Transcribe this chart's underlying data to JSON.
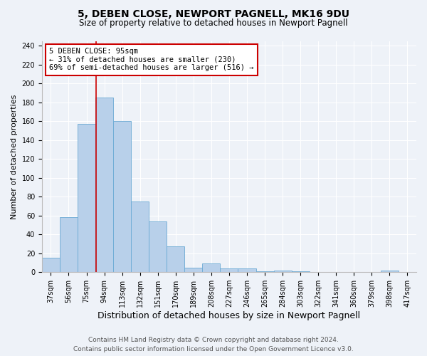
{
  "title": "5, DEBEN CLOSE, NEWPORT PAGNELL, MK16 9DU",
  "subtitle": "Size of property relative to detached houses in Newport Pagnell",
  "xlabel": "Distribution of detached houses by size in Newport Pagnell",
  "ylabel": "Number of detached properties",
  "bin_labels": [
    "37sqm",
    "56sqm",
    "75sqm",
    "94sqm",
    "113sqm",
    "132sqm",
    "151sqm",
    "170sqm",
    "189sqm",
    "208sqm",
    "227sqm",
    "246sqm",
    "265sqm",
    "284sqm",
    "303sqm",
    "322sqm",
    "341sqm",
    "360sqm",
    "379sqm",
    "398sqm",
    "417sqm"
  ],
  "bar_heights": [
    15,
    58,
    157,
    185,
    160,
    75,
    54,
    27,
    5,
    9,
    4,
    4,
    1,
    2,
    1,
    0,
    0,
    0,
    0,
    2,
    0
  ],
  "bin_edges": [
    37,
    56,
    75,
    94,
    113,
    132,
    151,
    170,
    189,
    208,
    227,
    246,
    265,
    284,
    303,
    322,
    341,
    360,
    379,
    398,
    417
  ],
  "bar_color": "#b8d0ea",
  "bar_edge_color": "#6aaad4",
  "property_size": 95,
  "vline_color": "#cc0000",
  "annotation_line1": "5 DEBEN CLOSE: 95sqm",
  "annotation_line2": "← 31% of detached houses are smaller (230)",
  "annotation_line3": "69% of semi-detached houses are larger (516) →",
  "annotation_box_color": "#ffffff",
  "annotation_box_edge_color": "#cc0000",
  "ylim": [
    0,
    245
  ],
  "yticks": [
    0,
    20,
    40,
    60,
    80,
    100,
    120,
    140,
    160,
    180,
    200,
    220,
    240
  ],
  "footer_line1": "Contains HM Land Registry data © Crown copyright and database right 2024.",
  "footer_line2": "Contains public sector information licensed under the Open Government Licence v3.0.",
  "bg_color": "#eef2f8",
  "grid_color": "#ffffff",
  "title_fontsize": 10,
  "subtitle_fontsize": 8.5,
  "xlabel_fontsize": 9,
  "ylabel_fontsize": 8,
  "tick_fontsize": 7,
  "annotation_fontsize": 7.5,
  "footer_fontsize": 6.5
}
